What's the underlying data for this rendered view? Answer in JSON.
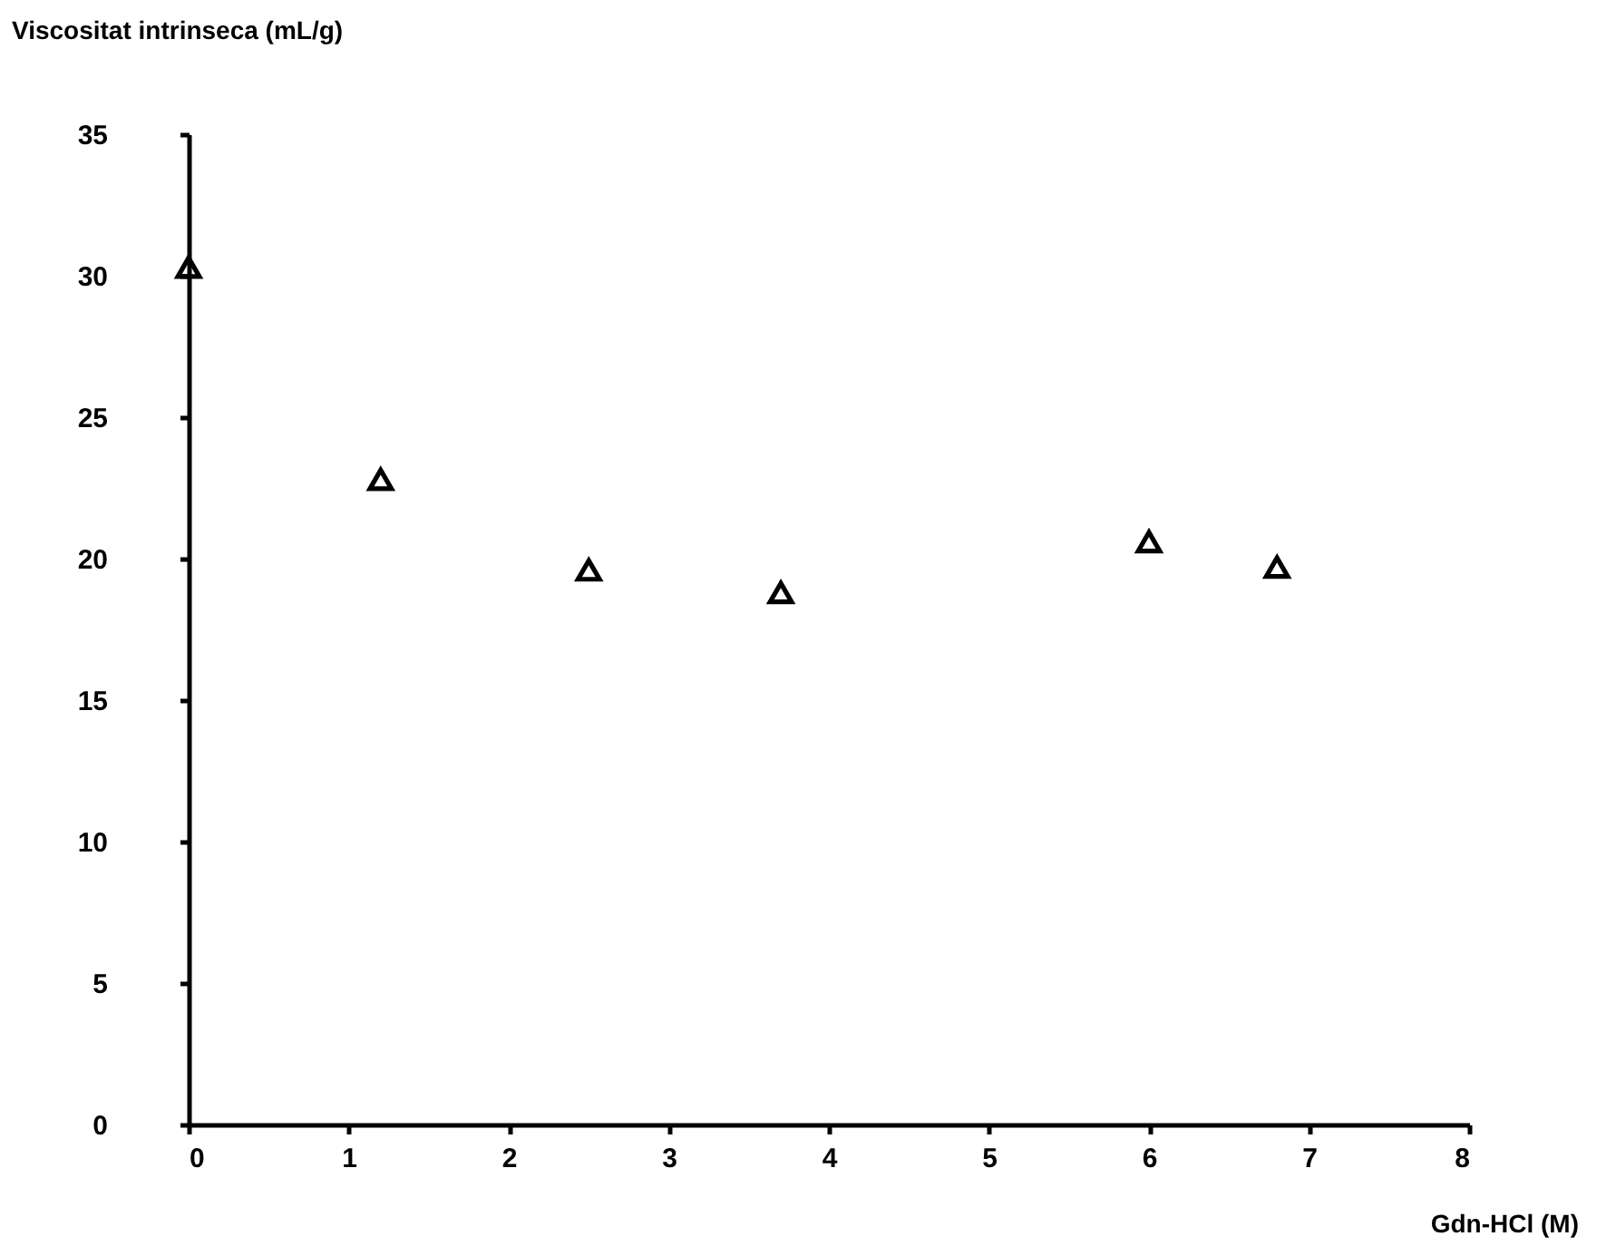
{
  "chart_data": {
    "type": "scatter",
    "xlabel": "Gdn-HCl (M)",
    "ylabel": "Viscositat intrinseca (mL/g)",
    "x": [
      0,
      1.2,
      2.5,
      3.7,
      6.0,
      6.8
    ],
    "series": [
      {
        "color": "#000000",
        "values": [
          30.3,
          22.8,
          19.6,
          18.8,
          20.6,
          19.7
        ]
      }
    ],
    "xlim": [
      0,
      8
    ],
    "xticks": [
      0,
      1,
      2,
      3,
      4,
      5,
      6,
      7,
      8
    ],
    "ylim": [
      0,
      35
    ],
    "yticks": [
      0,
      5,
      10,
      15,
      20,
      25,
      30,
      35
    ],
    "marker": "triangle",
    "grid": false
  }
}
